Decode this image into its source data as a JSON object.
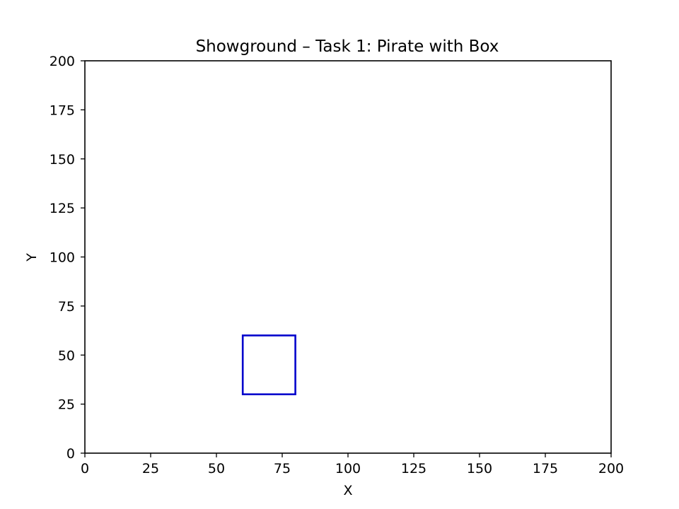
{
  "chart_data": {
    "type": "shape",
    "title": "Showground – Task 1: Pirate with Box",
    "xlabel": "X",
    "ylabel": "Y",
    "xlim": [
      0,
      200
    ],
    "ylim": [
      0,
      200
    ],
    "xticks": [
      0,
      25,
      50,
      75,
      100,
      125,
      150,
      175,
      200
    ],
    "yticks": [
      0,
      25,
      50,
      75,
      100,
      125,
      150,
      175,
      200
    ],
    "grid": false,
    "shapes": [
      {
        "name": "box",
        "kind": "rectangle",
        "x": [
          60,
          80
        ],
        "y": [
          30,
          60
        ],
        "stroke": "#0000cc",
        "fill": "none"
      }
    ]
  }
}
